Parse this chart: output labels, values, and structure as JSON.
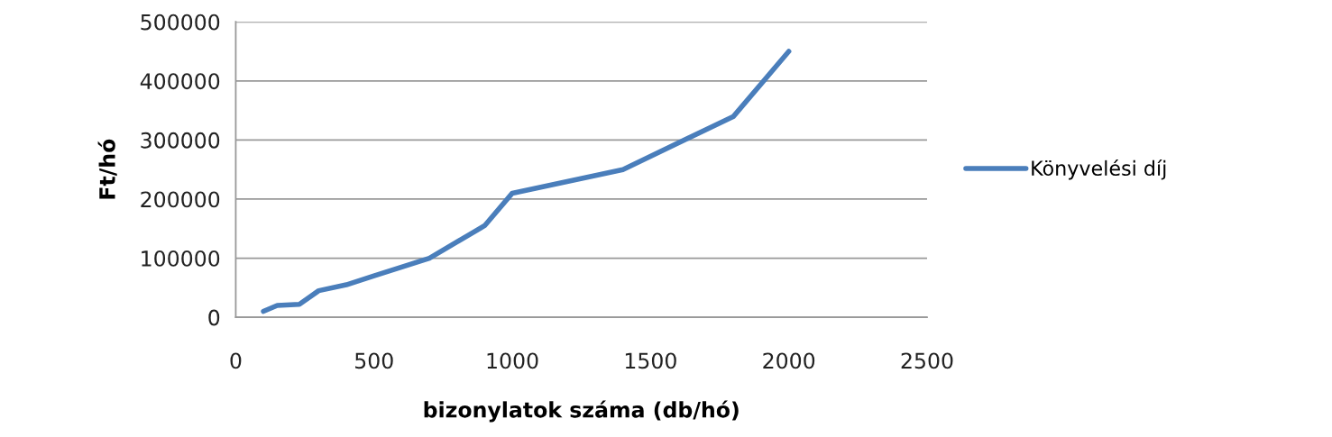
{
  "chart_data": {
    "type": "line",
    "xlabel": "bizonylatok száma (db/hó)",
    "ylabel": "Ft/hó",
    "x": [
      100,
      150,
      230,
      300,
      400,
      500,
      700,
      900,
      1000,
      1400,
      1800,
      2000
    ],
    "series": [
      {
        "name": "Könyvelési díj",
        "color": "#4a7ebb",
        "values": [
          10000,
          20000,
          22000,
          45000,
          55000,
          70000,
          100000,
          155000,
          210000,
          250000,
          340000,
          450000
        ]
      }
    ],
    "xlim": [
      0,
      2500
    ],
    "xticks": [
      0,
      500,
      1000,
      1500,
      2000,
      2500
    ],
    "ylim": [
      0,
      500000
    ],
    "yticks": [
      0,
      100000,
      200000,
      300000,
      400000,
      500000
    ],
    "grid": "y",
    "legend": "right",
    "marker": "none",
    "line_style": "solid"
  }
}
